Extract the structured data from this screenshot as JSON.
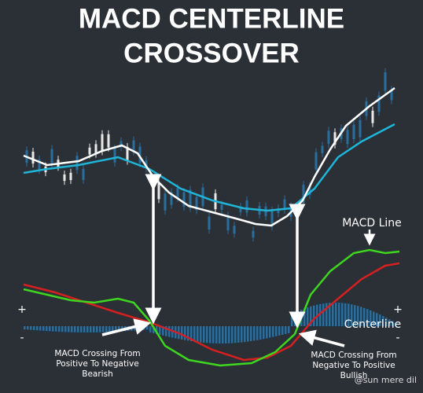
{
  "title": {
    "line1": "MACD CENTERLINE",
    "line2": "CROSSOVER"
  },
  "labels": {
    "macd_line": "MACD Line",
    "centerline": "Centerline",
    "plus_left": "+",
    "minus_left": "-",
    "plus_right": "+",
    "minus_right": "-"
  },
  "annotations": {
    "bearish": [
      "MACD Crossing From",
      "Positive To Negative",
      "Bearish"
    ],
    "bullish": [
      "MACD Crossing From",
      "Negative To Positive",
      "Bullish"
    ]
  },
  "watermark": "@sun mere dil"
}
